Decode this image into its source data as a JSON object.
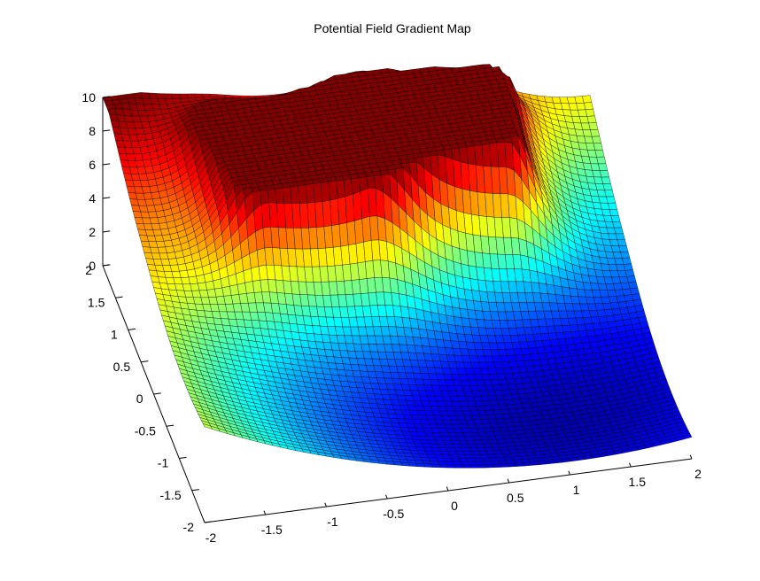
{
  "chart_data": {
    "type": "surface",
    "title": "Potential Field Gradient Map",
    "colormap": "jet",
    "grid": false,
    "x_range": [
      -2,
      2
    ],
    "y_range": [
      -2,
      2
    ],
    "z_range": [
      0,
      10
    ],
    "x_ticks": [
      -2,
      -1.5,
      -1,
      -0.5,
      0,
      0.5,
      1,
      1.5,
      2
    ],
    "y_ticks": [
      -2,
      -1.5,
      -1,
      -0.5,
      0,
      0.5,
      1,
      1.5,
      2
    ],
    "z_ticks": [
      0,
      2,
      4,
      6,
      8,
      10
    ],
    "x_tick_labels": [
      "-2",
      "-1.5",
      "-1",
      "-0.5",
      "0",
      "0.5",
      "1",
      "1.5",
      "2"
    ],
    "y_tick_labels": [
      "-2",
      "-1.5",
      "-1",
      "-0.5",
      "0",
      "0.5",
      "1",
      "1.5",
      "2"
    ],
    "z_tick_labels": [
      "0",
      "2",
      "4",
      "6",
      "8",
      "10"
    ],
    "field": {
      "attractive_goal": {
        "x": 1.0,
        "y": -1.0
      },
      "obstacles": [
        {
          "x_range": [
            -1.0,
            -0.2
          ],
          "y_range": [
            0.5,
            1.3
          ],
          "z": 10
        },
        {
          "x_range": [
            0.2,
            1.0
          ],
          "y_range": [
            0.7,
            1.5
          ],
          "z": 10
        }
      ],
      "z_cap": 10
    }
  }
}
